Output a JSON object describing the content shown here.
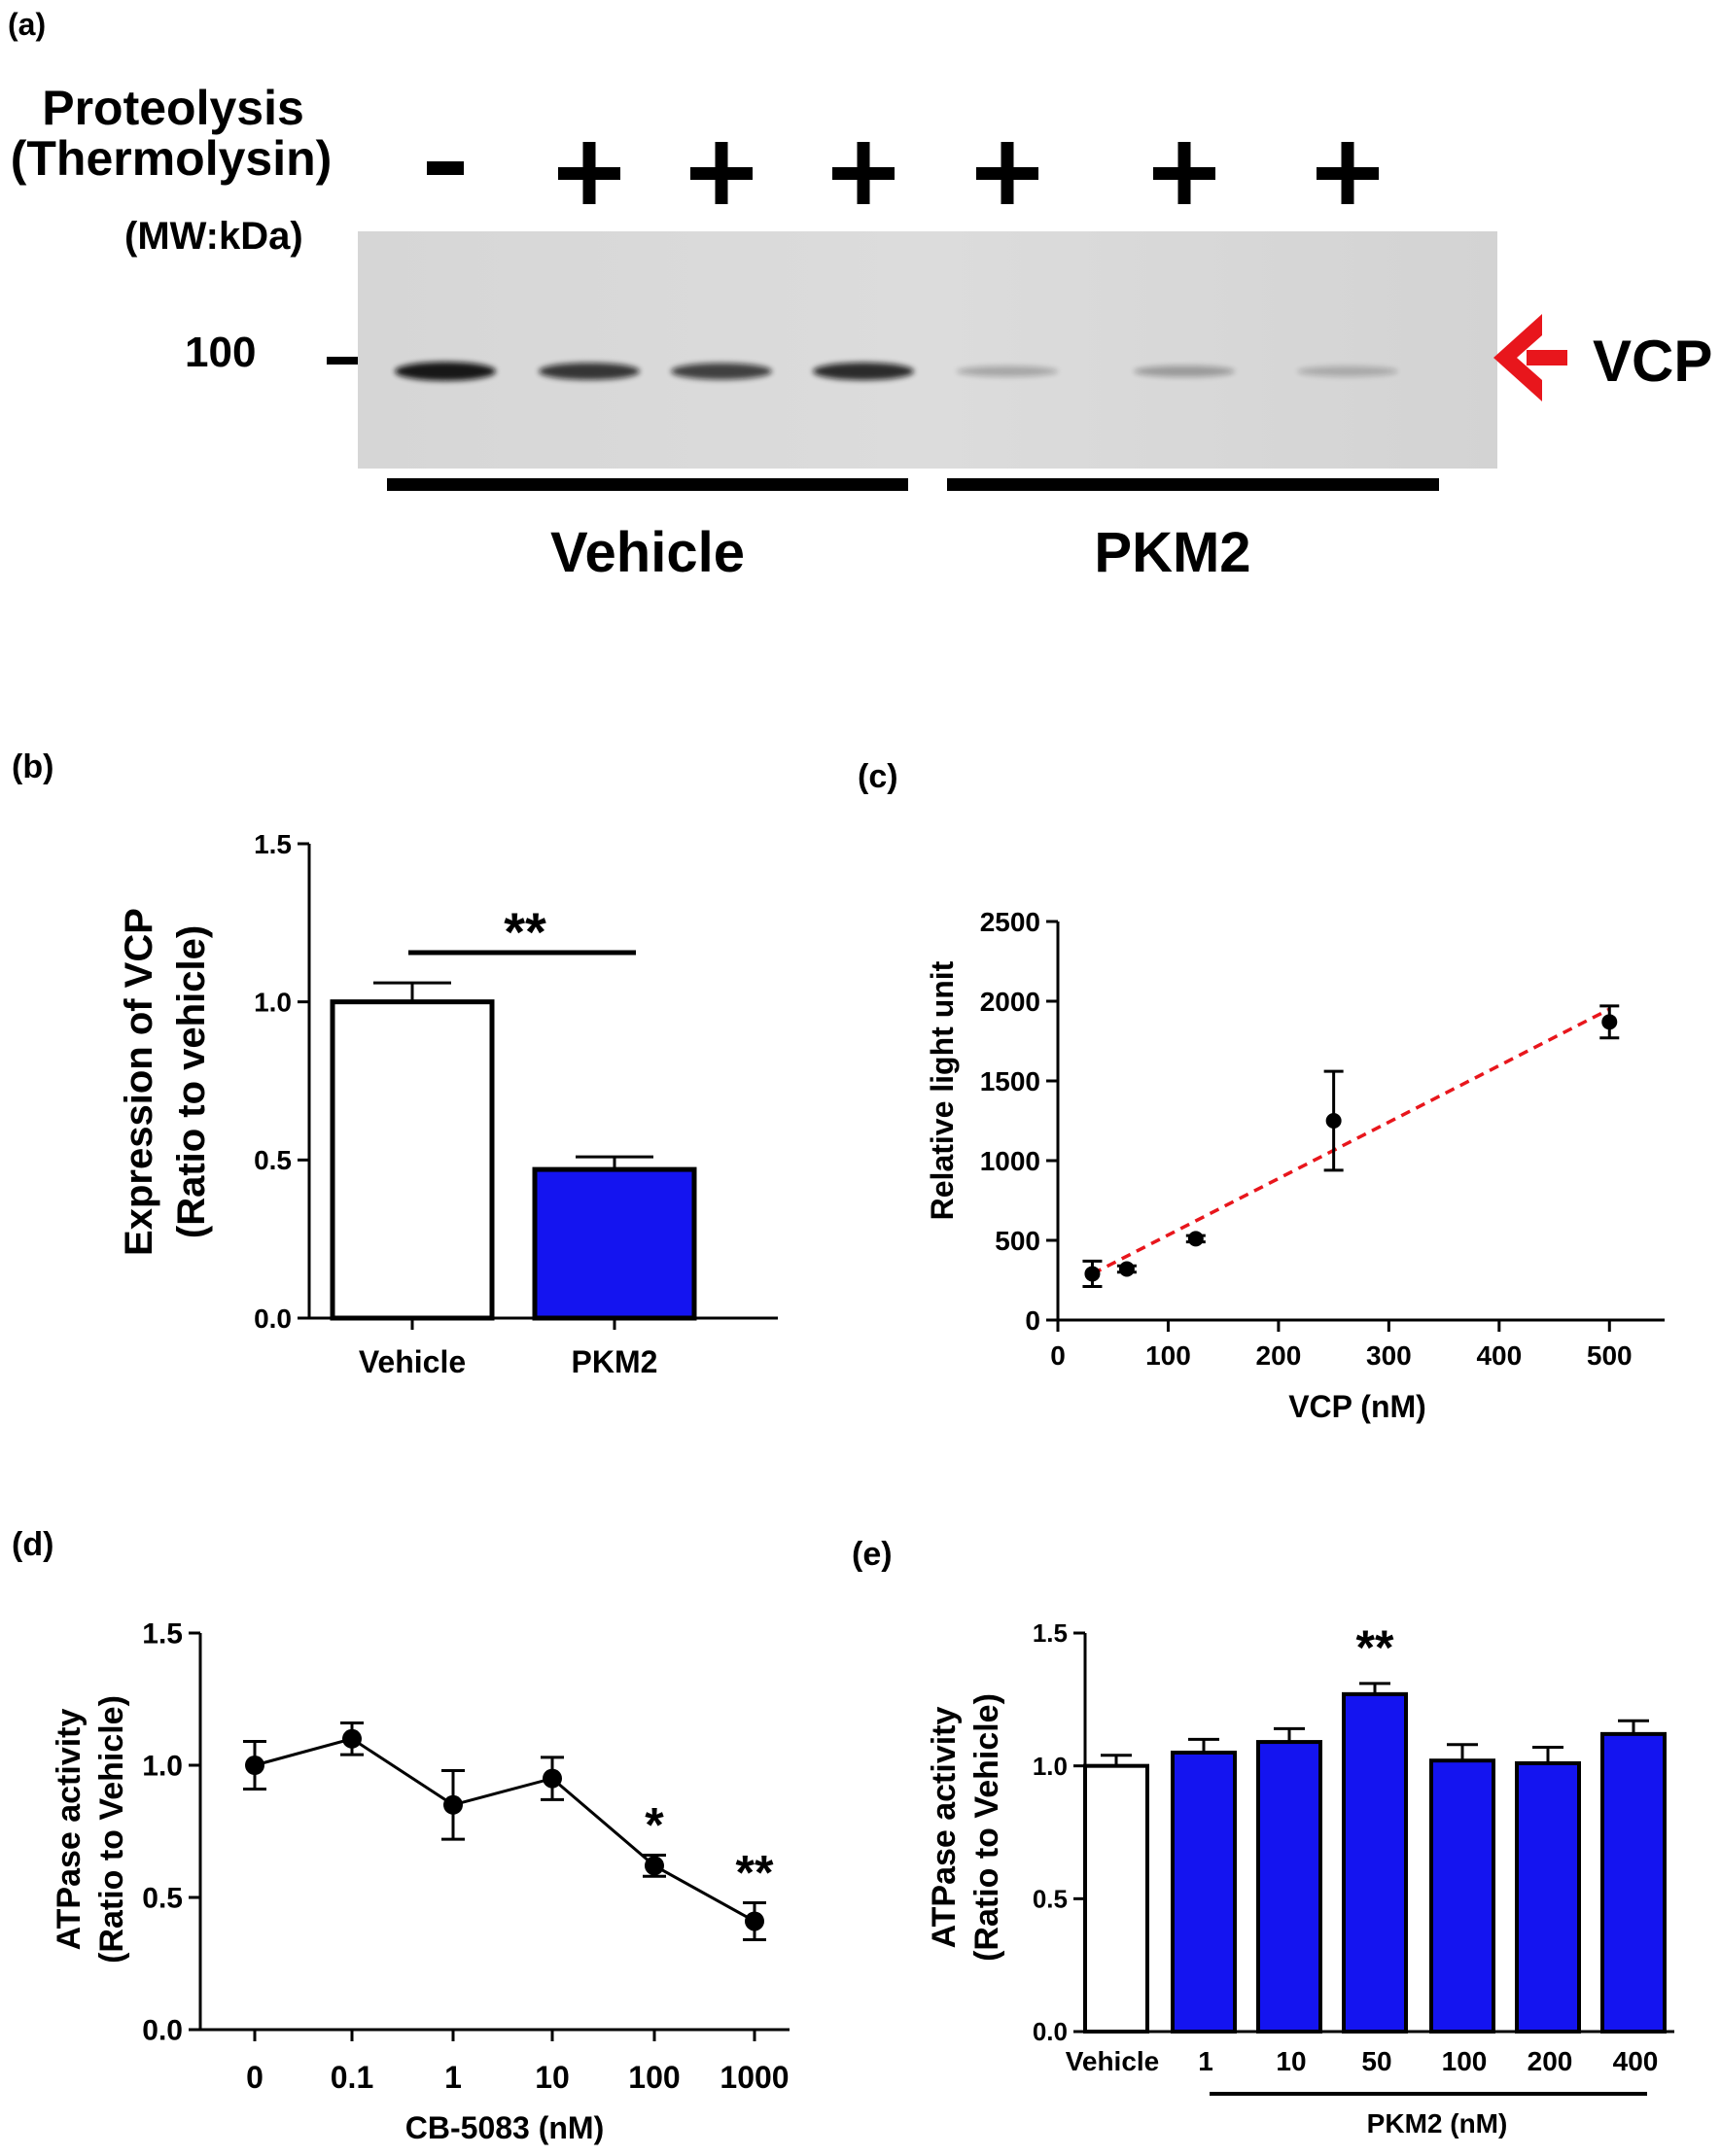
{
  "colors": {
    "blue": "#1414f0",
    "red": "#e8161c",
    "black": "#000000",
    "white": "#ffffff",
    "blot_bg": "#d9d9d9"
  },
  "panel_a": {
    "label": "(a)",
    "header_line1": "Proteolysis",
    "header_line2": "(Thermolysin)",
    "mw_label": "(MW:kDa)",
    "marker": "100",
    "signs": [
      "-",
      "+",
      "+",
      "+",
      "+",
      "+",
      "+"
    ],
    "target": "VCP",
    "group_vehicle": "Vehicle",
    "group_pkm2": "PKM2",
    "band_intensity": [
      0.95,
      0.8,
      0.75,
      0.85,
      0.25,
      0.3,
      0.22
    ]
  },
  "chart_data": [
    {
      "panel": "b",
      "panel_label": "(b)",
      "type": "bar",
      "categories": [
        "Vehicle",
        "PKM2"
      ],
      "values": [
        1.0,
        0.47
      ],
      "errors": [
        0.06,
        0.04
      ],
      "ylabel_line1": "Expression of VCP",
      "ylabel_line2": "(Ratio to vehicle)",
      "ylim": [
        0,
        1.5
      ],
      "yticks": [
        "0.0",
        "0.5",
        "1.0",
        "1.5"
      ],
      "significance": "**"
    },
    {
      "panel": "c",
      "panel_label": "(c)",
      "type": "scatter",
      "x": [
        31.25,
        62.5,
        125,
        250,
        500
      ],
      "y": [
        290,
        320,
        510,
        1250,
        1870
      ],
      "errors": [
        80,
        20,
        20,
        310,
        100
      ],
      "xlabel": "VCP (nM)",
      "ylabel": "Relative light unit",
      "xlim": [
        0,
        550
      ],
      "ylim": [
        0,
        2500
      ],
      "xticks": [
        "0",
        "100",
        "200",
        "300",
        "400",
        "500"
      ],
      "yticks": [
        "0",
        "500",
        "1000",
        "1500",
        "2000",
        "2500"
      ],
      "fit_line": {
        "x": [
          31.25,
          500
        ],
        "y": [
          290,
          1950
        ]
      }
    },
    {
      "panel": "d",
      "panel_label": "(d)",
      "type": "line",
      "categories": [
        "0",
        "0.1",
        "1",
        "10",
        "100",
        "1000"
      ],
      "values": [
        1.0,
        1.1,
        0.85,
        0.95,
        0.62,
        0.41
      ],
      "errors": [
        0.09,
        0.06,
        0.13,
        0.08,
        0.04,
        0.07
      ],
      "xlabel": "CB-5083 (nM)",
      "ylabel_line1": "ATPase activity",
      "ylabel_line2": "(Ratio to Vehicle)",
      "ylim": [
        0,
        1.5
      ],
      "yticks": [
        "0.0",
        "0.5",
        "1.0",
        "1.5"
      ],
      "annotations": [
        "",
        "",
        "",
        "",
        "*",
        "**"
      ]
    },
    {
      "panel": "e",
      "panel_label": "(e)",
      "type": "bar",
      "categories": [
        "Vehicle",
        "1",
        "10",
        "50",
        "100",
        "200",
        "400"
      ],
      "values": [
        1.0,
        1.05,
        1.09,
        1.27,
        1.02,
        1.01,
        1.12
      ],
      "errors": [
        0.04,
        0.05,
        0.05,
        0.04,
        0.06,
        0.06,
        0.05
      ],
      "xlabel": "PKM2 (nM)",
      "ylabel_line1": "ATPase activity",
      "ylabel_line2": "(Ratio to Vehicle)",
      "ylim": [
        0,
        1.5
      ],
      "yticks": [
        "0.0",
        "0.5",
        "1.0",
        "1.5"
      ],
      "annotations": [
        "",
        "",
        "",
        "**",
        "",
        "",
        ""
      ]
    }
  ]
}
